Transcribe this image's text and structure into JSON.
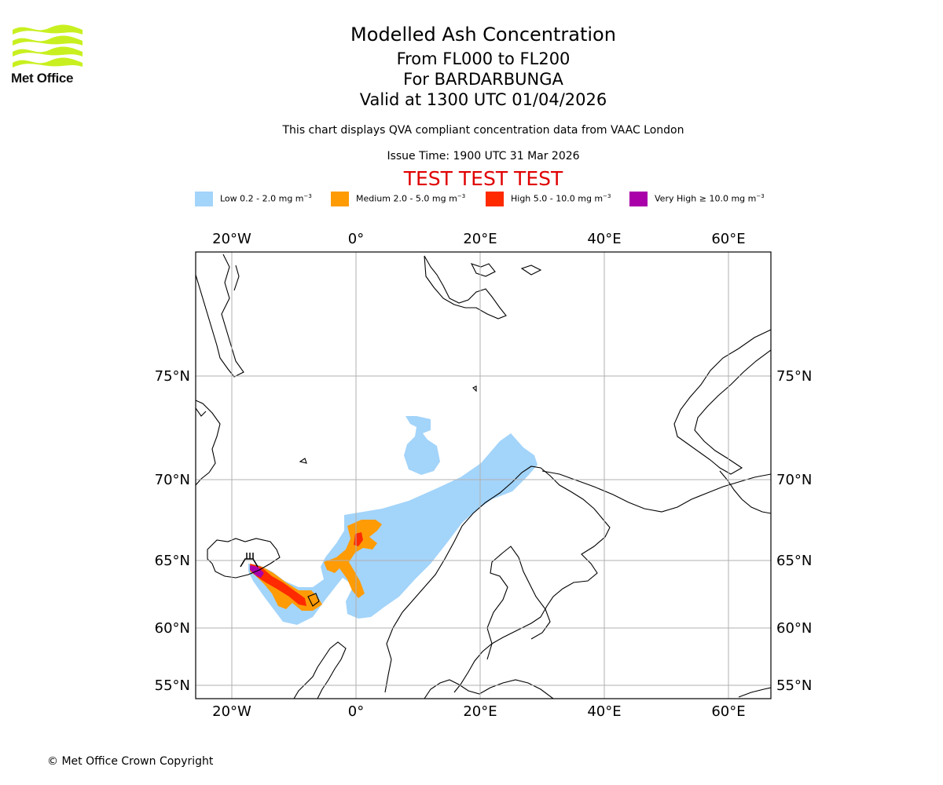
{
  "branding": {
    "logo_text": "Met Office",
    "logo_color": "#c8f020"
  },
  "header": {
    "title": "Modelled Ash Concentration",
    "levels": "From FL000 to FL200",
    "volcano": "For BARDARBUNGA",
    "valid_time": "Valid at 1300 UTC 01/04/2026",
    "compliance_note": "This chart displays QVA compliant concentration data from VAAC London",
    "issue_time": "Issue Time: 1900 UTC 31 Mar 2026",
    "test_banner": "TEST TEST TEST"
  },
  "legend": [
    {
      "label": "Low 0.2 - 2.0 mg m",
      "unit_exp": "−3",
      "color": "#a3d4fa"
    },
    {
      "label": "Medium 2.0 - 5.0 mg m",
      "unit_exp": "−3",
      "color": "#ff9b05"
    },
    {
      "label": "High 5.0 - 10.0 mg m",
      "unit_exp": "−3",
      "color": "#ff2a00"
    },
    {
      "label": "Very High ≥ 10.0 mg m",
      "unit_exp": "−3",
      "color": "#aa00aa"
    }
  ],
  "map": {
    "lon_labels": [
      "20°W",
      "0°",
      "20°E",
      "40°E",
      "60°E"
    ],
    "lat_labels": [
      "75°N",
      "70°N",
      "65°N",
      "60°N",
      "55°N"
    ],
    "volcano_icon": "volcano-icon"
  },
  "footer": {
    "copyright": "© Met Office Crown Copyright"
  }
}
